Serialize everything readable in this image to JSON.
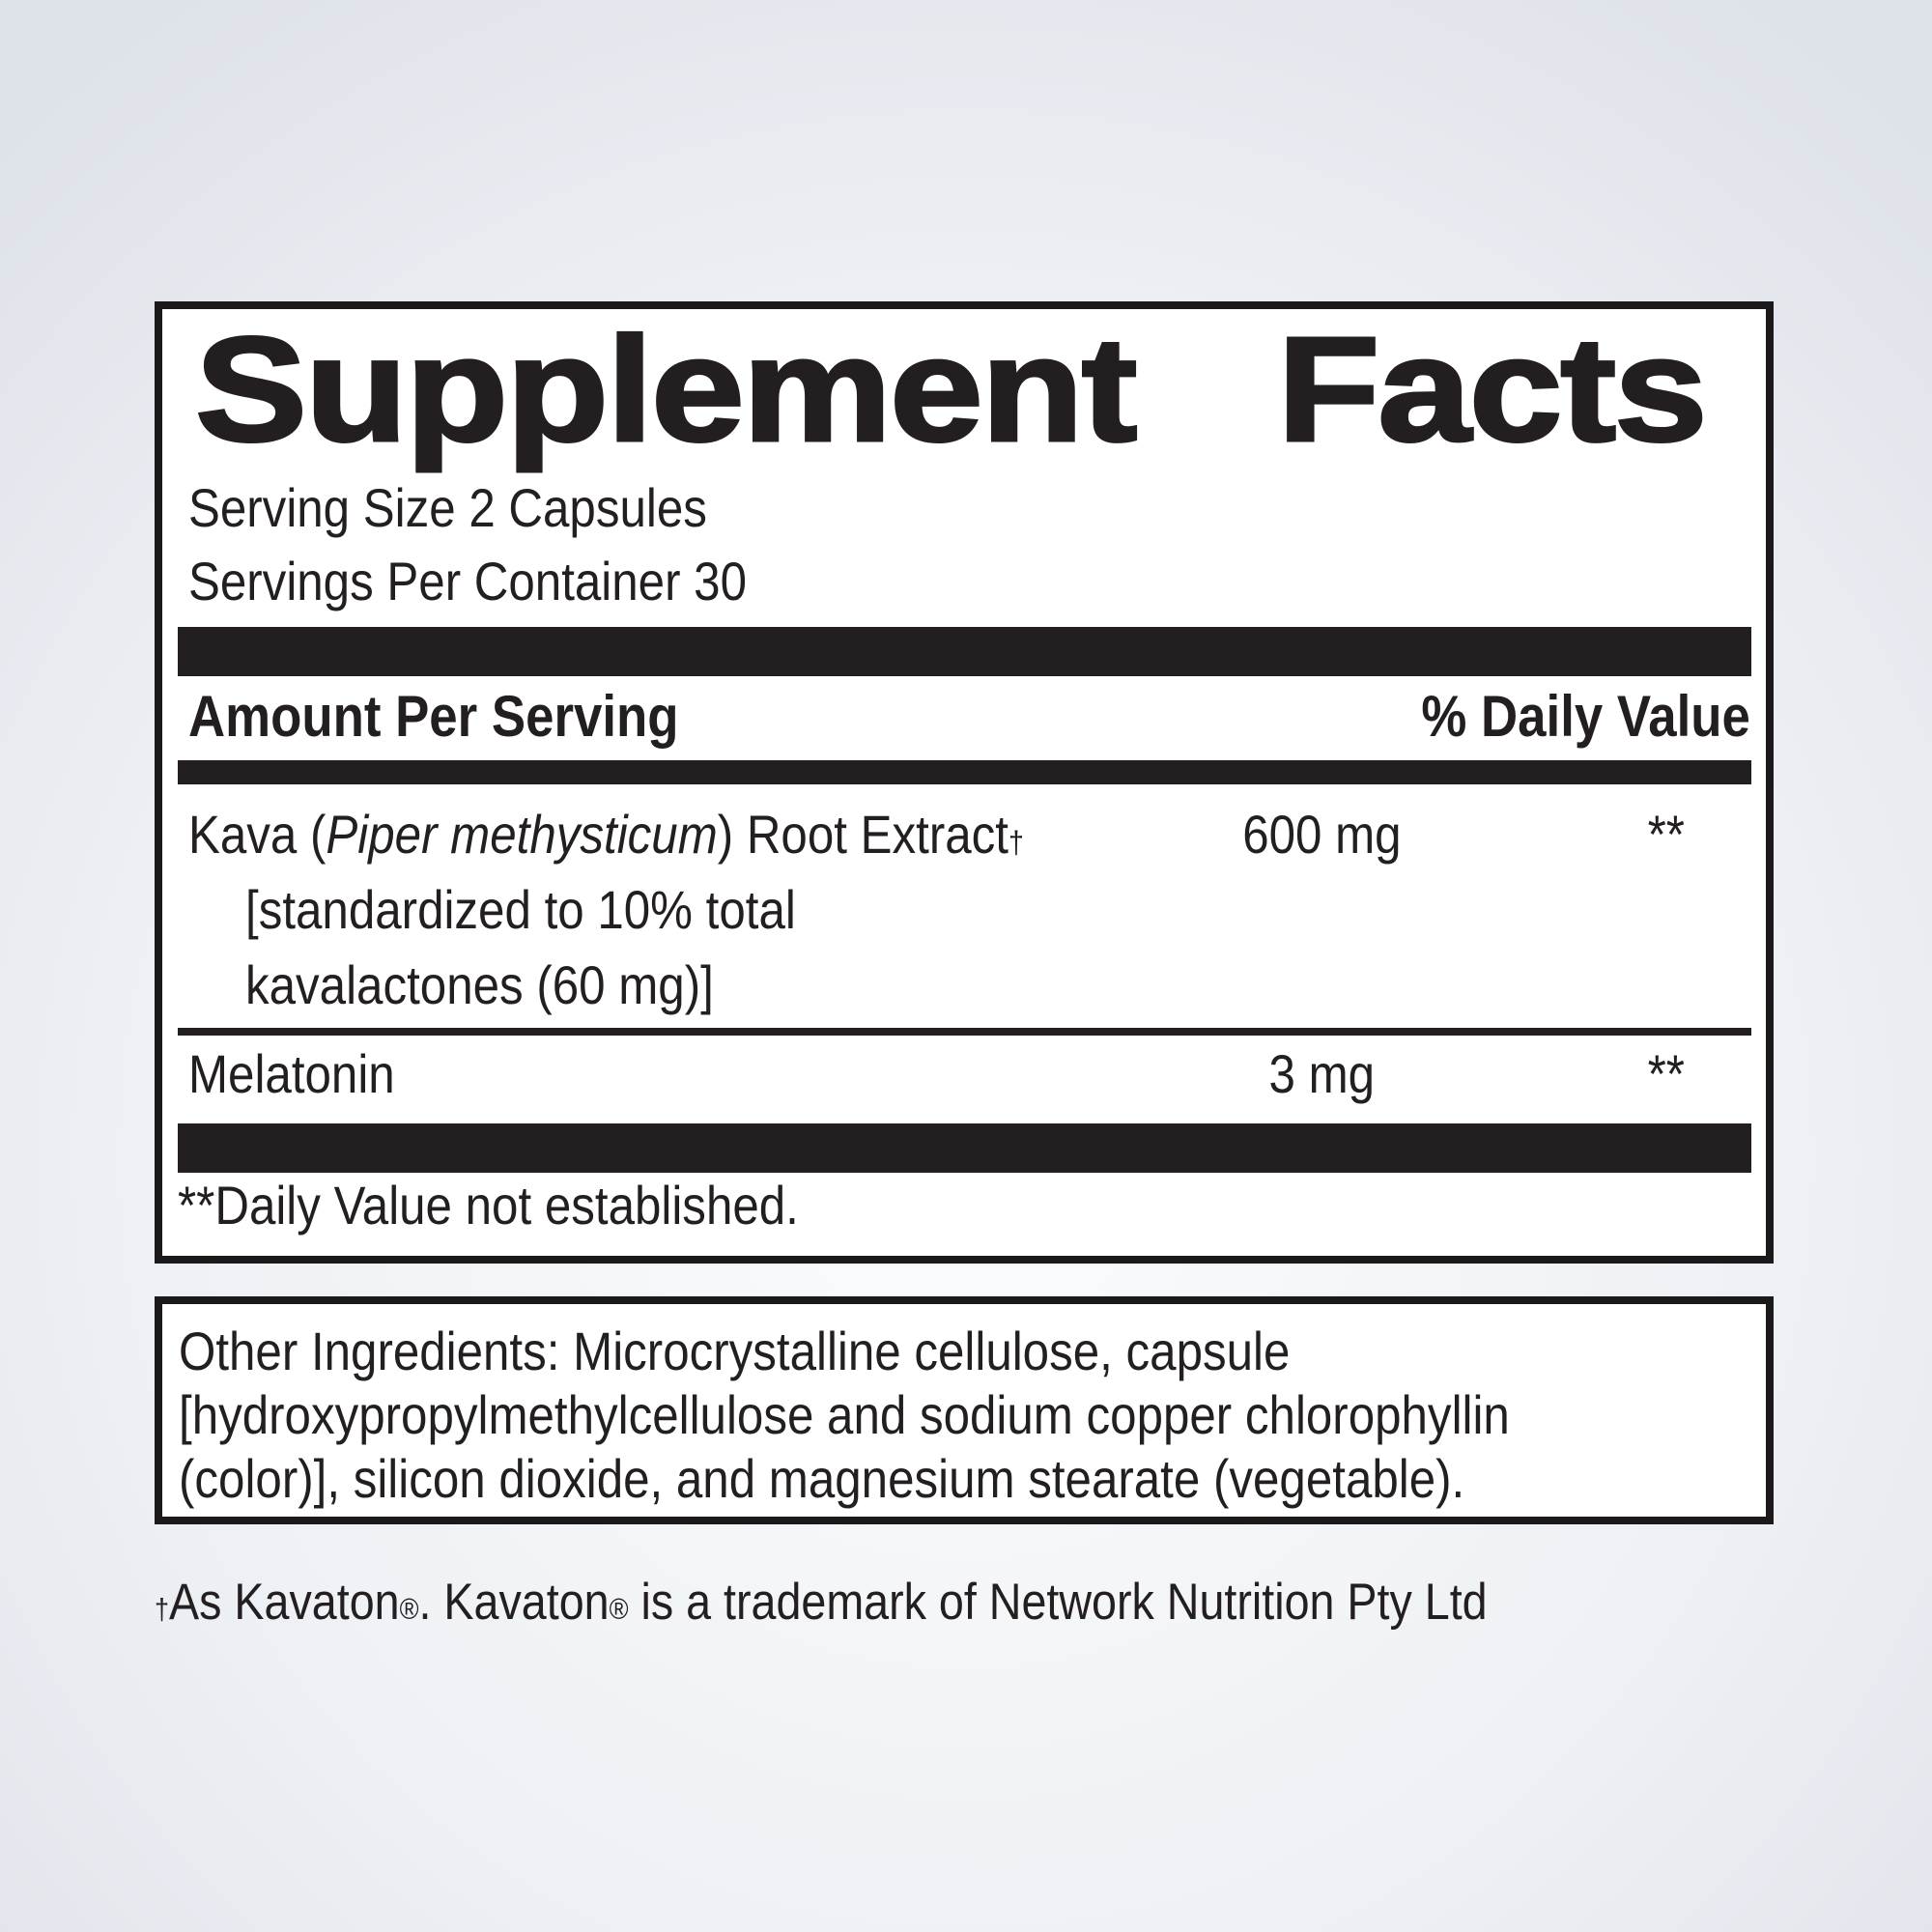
{
  "label": {
    "title": {
      "word1": "Supplement",
      "word2": "Facts"
    },
    "serving": {
      "size": "Serving Size 2 Capsules",
      "per_container": "Servings Per Container 30"
    },
    "columns": {
      "amount_header": "Amount Per Serving",
      "daily_value_header": "% Daily Value"
    },
    "rows": [
      {
        "name_prefix": "Kava (",
        "species_italic": "Piper methysticum",
        "name_suffix": ") Root Extract",
        "dagger": "†",
        "detail_lines": [
          "[standardized to 10% total",
          "kavalactones (60 mg)]"
        ],
        "amount": "600 mg",
        "daily_value": "**"
      },
      {
        "name": "Melatonin",
        "amount": "3 mg",
        "daily_value": "**"
      }
    ],
    "dv_footnote": "**Daily Value not established."
  },
  "other_ingredients_lines": [
    "Other Ingredients: Microcrystalline cellulose, capsule",
    "[hydroxypropylmethylcellulose and sodium copper chlorophyllin",
    "(color)], silicon dioxide, and magnesium stearate (vegetable)."
  ],
  "trademark": {
    "dagger": "†",
    "seg1": "As Kavaton",
    "reg1": "®",
    "seg2": ". Kavaton",
    "reg2": "®",
    "seg3": " is a trademark of Network Nutrition Pty Ltd"
  },
  "colors": {
    "ink": "#231f20",
    "panel_background": "#ffffff",
    "page_edge": "#dde1e8",
    "page_center": "#fafbfc"
  }
}
